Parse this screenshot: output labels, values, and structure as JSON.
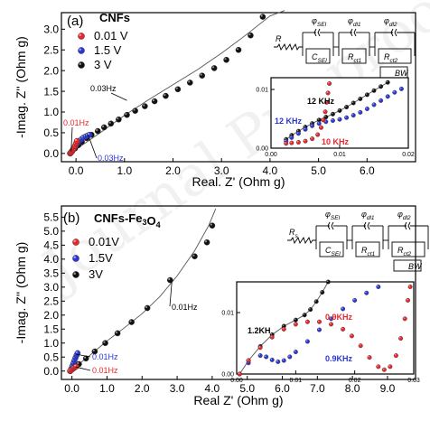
{
  "watermark": "Journal Pre-proof",
  "chart_data": [
    {
      "type": "scatter",
      "panel_label": "(a)",
      "panel_title": "CNFs",
      "xlabel": "Real. Z' (Ohm g)",
      "ylabel": "-Imag. Z'' (Ohm g)",
      "xlim": [
        -0.3,
        7.0
      ],
      "ylim": [
        -0.2,
        3.4
      ],
      "xticks": [
        "0.0",
        "1.0",
        "2.0",
        "3.0",
        "4.0",
        "5.0",
        "6.0"
      ],
      "yticks": [
        "0.0",
        "0.5",
        "1.0",
        "1.5",
        "2.0",
        "2.5",
        "3.0"
      ],
      "legend_location": "top-left",
      "series": [
        {
          "name": "0.01 V",
          "color": "#e8262b",
          "x": [
            -0.12,
            -0.1,
            -0.08,
            -0.06,
            -0.04,
            -0.02,
            0.0,
            0.02
          ],
          "y": [
            0.0,
            0.02,
            0.05,
            0.09,
            0.13,
            0.18,
            0.24,
            0.3
          ]
        },
        {
          "name": "1.5 V",
          "color": "#2b36d6",
          "x": [
            -0.12,
            -0.09,
            -0.06,
            -0.03,
            0.0,
            0.03,
            0.07,
            0.11,
            0.15,
            0.2,
            0.24,
            0.28
          ],
          "y": [
            0.0,
            0.05,
            0.1,
            0.15,
            0.2,
            0.25,
            0.3,
            0.34,
            0.38,
            0.41,
            0.43,
            0.45
          ]
        },
        {
          "name": "3 V",
          "color": "#111111",
          "x": [
            -0.12,
            -0.08,
            -0.02,
            0.05,
            0.12,
            0.22,
            0.32,
            0.45,
            0.58,
            0.72,
            0.88,
            1.05,
            1.22,
            1.42,
            1.62,
            1.85,
            2.1,
            2.35,
            2.6,
            2.85,
            3.1,
            3.35,
            3.6,
            3.85
          ],
          "y": [
            0.0,
            0.05,
            0.12,
            0.2,
            0.28,
            0.37,
            0.45,
            0.54,
            0.63,
            0.72,
            0.82,
            0.93,
            1.03,
            1.14,
            1.26,
            1.39,
            1.55,
            1.71,
            1.88,
            2.06,
            2.26,
            2.5,
            2.85,
            3.3
          ]
        }
      ],
      "fit_line": {
        "x": [
          -0.12,
          0.5,
          1.0,
          1.5,
          2.0,
          2.5,
          3.0,
          3.5,
          4.0,
          4.3
        ],
        "y": [
          0.0,
          0.5,
          0.92,
          1.3,
          1.66,
          2.02,
          2.42,
          2.86,
          3.32,
          3.45
        ]
      },
      "annotations": [
        {
          "text": "0.03Hz",
          "color": "#000000",
          "x": 0.95,
          "y": 1.6
        },
        {
          "text": "0.01Hz",
          "color": "#e8262b",
          "x": -0.22,
          "y": 0.82
        },
        {
          "text": "0.03Hz",
          "color": "#2b36d6",
          "x": 0.75,
          "y": 0.1
        }
      ],
      "inset": {
        "xlim": [
          0.0,
          0.02
        ],
        "ylim": [
          0.0,
          0.012
        ],
        "xticks": [
          "0.00",
          "0.01",
          "0.02"
        ],
        "yticks": [
          "0.00",
          "0.01"
        ],
        "annotations": [
          {
            "text": "12 KHz",
            "color": "#000000"
          },
          {
            "text": "12 KHz",
            "color": "#2b36d6"
          },
          {
            "text": "10 KHz",
            "color": "#e8262b"
          }
        ],
        "series": [
          {
            "color": "#e8262b",
            "x": [
              0.0022,
              0.003,
              0.004,
              0.005,
              0.006,
              0.0068,
              0.0073,
              0.0076,
              0.0079,
              0.0081,
              0.0083,
              0.0085
            ],
            "y": [
              0.0008,
              0.0009,
              0.001,
              0.0012,
              0.0016,
              0.0023,
              0.0035,
              0.0048,
              0.0062,
              0.0078,
              0.0094,
              0.011
            ]
          },
          {
            "color": "#2b36d6",
            "x": [
              0.0022,
              0.003,
              0.004,
              0.005,
              0.006,
              0.007,
              0.008,
              0.009,
              0.01,
              0.011,
              0.012,
              0.013,
              0.014,
              0.015,
              0.016,
              0.017,
              0.018,
              0.019
            ],
            "y": [
              0.0012,
              0.0018,
              0.0025,
              0.0032,
              0.0038,
              0.0042,
              0.0045,
              0.0047,
              0.0049,
              0.0052,
              0.0056,
              0.0061,
              0.0067,
              0.0074,
              0.0081,
              0.0088,
              0.0095,
              0.0101
            ]
          },
          {
            "color": "#111111",
            "x": [
              0.0022,
              0.003,
              0.004,
              0.005,
              0.006,
              0.007,
              0.008,
              0.009,
              0.01,
              0.011,
              0.012,
              0.013,
              0.014,
              0.015,
              0.016,
              0.017
            ],
            "y": [
              0.0015,
              0.0022,
              0.0029,
              0.0036,
              0.0042,
              0.0048,
              0.0053,
              0.0058,
              0.0064,
              0.007,
              0.0077,
              0.0084,
              0.0091,
              0.0098,
              0.0105,
              0.0112
            ]
          }
        ]
      },
      "circuit": {
        "labels": [
          "R",
          "φ SEI",
          "C SEI",
          "φ dl1",
          "R ct1",
          "φ dl2",
          "R ct2",
          "BW"
        ]
      }
    },
    {
      "type": "scatter",
      "panel_label": "(b)",
      "panel_title": "CNFs-Fe3O4",
      "xlabel": "Real Z' (Ohm g)",
      "ylabel": "-Imag. Z'' (Ohm g)",
      "xlim": [
        -0.3,
        9.8
      ],
      "ylim": [
        -0.3,
        5.9
      ],
      "xticks": [
        "0.0",
        "1.0",
        "2.0",
        "3.0",
        "4.0",
        "5.0",
        "6.0",
        "7.0",
        "8.0",
        "9.0"
      ],
      "yticks": [
        "0.0",
        "0.5",
        "1.0",
        "1.5",
        "2.0",
        "2.5",
        "3.0",
        "3.5",
        "4.0",
        "4.5",
        "5.0",
        "5.5"
      ],
      "legend_location": "top-left",
      "series": [
        {
          "name": "0.01V",
          "color": "#e8262b",
          "x": [
            -0.05,
            0.0,
            0.04,
            0.08,
            0.12
          ],
          "y": [
            0.0,
            0.05,
            0.1,
            0.13,
            0.16
          ]
        },
        {
          "name": "1.5V",
          "color": "#2b36d6",
          "x": [
            -0.05,
            -0.02,
            0.01,
            0.04,
            0.07,
            0.1,
            0.13,
            0.16
          ],
          "y": [
            0.0,
            0.08,
            0.17,
            0.27,
            0.37,
            0.47,
            0.56,
            0.64
          ]
        },
        {
          "name": "3V",
          "color": "#111111",
          "x": [
            -0.05,
            0.05,
            0.2,
            0.4,
            0.65,
            0.95,
            1.3,
            1.7,
            2.15,
            2.8,
            3.5,
            3.85,
            4.0
          ],
          "y": [
            0.0,
            0.1,
            0.25,
            0.45,
            0.7,
            1.0,
            1.35,
            1.75,
            2.25,
            3.25,
            4.1,
            4.6,
            5.2
          ]
        }
      ],
      "fit_line": {
        "x": [
          -0.05,
          0.5,
          1.0,
          1.5,
          2.0,
          2.5,
          3.0,
          3.5,
          3.9,
          4.1
        ],
        "y": [
          0.0,
          0.55,
          1.08,
          1.55,
          2.05,
          2.65,
          3.4,
          4.3,
          5.2,
          5.8
        ]
      },
      "annotations": [
        {
          "text": "0.01Hz",
          "color": "#000000",
          "x": 3.3,
          "y": 2.3
        },
        {
          "text": "0.01Hz",
          "color": "#2b36d6",
          "x": 0.55,
          "y": 0.45
        },
        {
          "text": "0.01Hz",
          "color": "#e8262b",
          "x": 0.55,
          "y": 0.05
        }
      ],
      "inset": {
        "xlim": [
          0.0,
          0.03
        ],
        "ylim": [
          0.0,
          0.015
        ],
        "xticks": [
          "0.00",
          "0.01",
          "0.02",
          "0.03"
        ],
        "yticks": [
          "0.00",
          "0.01"
        ],
        "annotations": [
          {
            "text": "0.9KHz",
            "color": "#e8262b"
          },
          {
            "text": "1.2KH",
            "color": "#000000"
          },
          {
            "text": "0.9KHz",
            "color": "#2b36d6"
          }
        ],
        "series": [
          {
            "color": "#e8262b",
            "x": [
              0.0005,
              0.002,
              0.004,
              0.006,
              0.008,
              0.01,
              0.012,
              0.014,
              0.016,
              0.018,
              0.0195,
              0.021,
              0.0225,
              0.024,
              0.025,
              0.026,
              0.027,
              0.0278,
              0.0285,
              0.029,
              0.0294
            ],
            "y": [
              0.0,
              0.0022,
              0.0043,
              0.006,
              0.0073,
              0.0081,
              0.0085,
              0.0085,
              0.0081,
              0.0073,
              0.0062,
              0.0046,
              0.0027,
              0.0012,
              0.0007,
              0.0012,
              0.003,
              0.0058,
              0.009,
              0.012,
              0.0142
            ]
          },
          {
            "color": "#2b36d6",
            "x": [
              0.0005,
              0.002,
              0.004,
              0.005,
              0.006,
              0.007,
              0.008,
              0.009,
              0.01,
              0.012,
              0.014,
              0.016,
              0.018,
              0.02,
              0.022,
              0.024
            ],
            "y": [
              0.0,
              0.0018,
              0.003,
              0.0028,
              0.0023,
              0.002,
              0.0022,
              0.0028,
              0.0036,
              0.0053,
              0.0072,
              0.009,
              0.0106,
              0.012,
              0.0132,
              0.0142
            ]
          },
          {
            "color": "#111111",
            "x": [
              0.0005,
              0.002,
              0.004,
              0.006,
              0.008,
              0.01,
              0.0115,
              0.0125,
              0.0135,
              0.0145,
              0.0155
            ],
            "y": [
              0.0,
              0.0022,
              0.0045,
              0.0064,
              0.0078,
              0.0088,
              0.0096,
              0.0105,
              0.0118,
              0.0133,
              0.015
            ]
          }
        ]
      },
      "circuit": {
        "labels": [
          "R s",
          "φ SEI",
          "C SEI",
          "φ dl1",
          "R ct1",
          "φ dl2",
          "R ct2",
          "BW"
        ]
      }
    }
  ]
}
